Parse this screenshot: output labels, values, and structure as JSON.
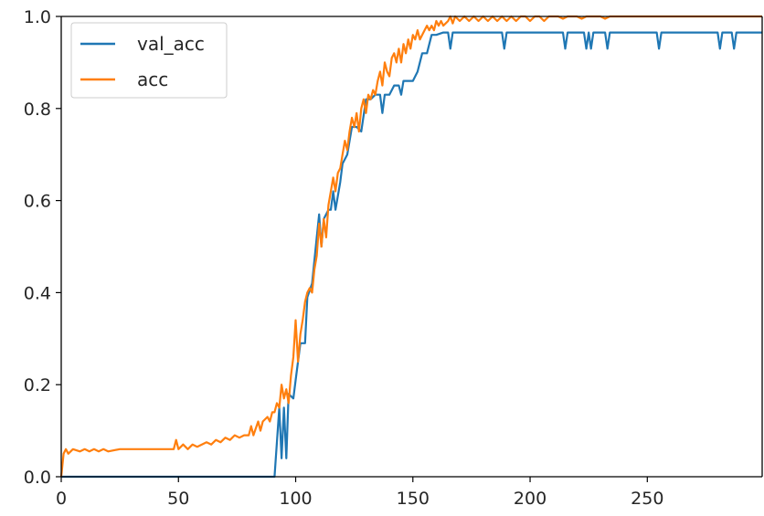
{
  "chart_data": {
    "type": "line",
    "title": "",
    "xlabel": "",
    "ylabel": "",
    "xlim": [
      0,
      299
    ],
    "ylim": [
      0,
      1.0
    ],
    "grid": false,
    "legend_position": "top-left",
    "x_ticks": [
      0,
      50,
      100,
      150,
      200,
      250
    ],
    "x_tick_labels": [
      "0",
      "50",
      "100",
      "150",
      "200",
      "250"
    ],
    "y_ticks": [
      0.0,
      0.2,
      0.4,
      0.6,
      0.8,
      1.0
    ],
    "y_tick_labels": [
      "0.0",
      "0.2",
      "0.4",
      "0.6",
      "0.8",
      "1.0"
    ],
    "series": [
      {
        "name": "val_acc",
        "color": "#1f77b4",
        "points": [
          [
            0,
            0.0
          ],
          [
            91,
            0.0
          ],
          [
            93,
            0.15
          ],
          [
            94,
            0.04
          ],
          [
            95,
            0.15
          ],
          [
            96,
            0.04
          ],
          [
            97,
            0.18
          ],
          [
            99,
            0.17
          ],
          [
            100,
            0.21
          ],
          [
            102,
            0.29
          ],
          [
            104,
            0.29
          ],
          [
            105,
            0.39
          ],
          [
            107,
            0.42
          ],
          [
            109,
            0.52
          ],
          [
            110,
            0.57
          ],
          [
            111,
            0.5
          ],
          [
            112,
            0.56
          ],
          [
            114,
            0.58
          ],
          [
            115,
            0.58
          ],
          [
            116,
            0.62
          ],
          [
            117,
            0.58
          ],
          [
            119,
            0.64
          ],
          [
            120,
            0.68
          ],
          [
            122,
            0.7
          ],
          [
            124,
            0.76
          ],
          [
            126,
            0.76
          ],
          [
            128,
            0.75
          ],
          [
            130,
            0.82
          ],
          [
            132,
            0.82
          ],
          [
            134,
            0.83
          ],
          [
            136,
            0.83
          ],
          [
            137,
            0.79
          ],
          [
            138,
            0.83
          ],
          [
            140,
            0.83
          ],
          [
            142,
            0.85
          ],
          [
            144,
            0.85
          ],
          [
            145,
            0.83
          ],
          [
            146,
            0.86
          ],
          [
            150,
            0.86
          ],
          [
            152,
            0.88
          ],
          [
            154,
            0.92
          ],
          [
            156,
            0.92
          ],
          [
            158,
            0.96
          ],
          [
            160,
            0.96
          ],
          [
            163,
            0.965
          ],
          [
            165,
            0.965
          ],
          [
            166,
            0.93
          ],
          [
            167,
            0.965
          ],
          [
            188,
            0.965
          ],
          [
            189,
            0.93
          ],
          [
            190,
            0.965
          ],
          [
            214,
            0.965
          ],
          [
            215,
            0.93
          ],
          [
            216,
            0.965
          ],
          [
            223,
            0.965
          ],
          [
            224,
            0.93
          ],
          [
            225,
            0.965
          ],
          [
            226,
            0.93
          ],
          [
            227,
            0.965
          ],
          [
            232,
            0.965
          ],
          [
            233,
            0.93
          ],
          [
            234,
            0.965
          ],
          [
            254,
            0.965
          ],
          [
            255,
            0.93
          ],
          [
            256,
            0.965
          ],
          [
            280,
            0.965
          ],
          [
            281,
            0.93
          ],
          [
            282,
            0.965
          ],
          [
            286,
            0.965
          ],
          [
            287,
            0.93
          ],
          [
            288,
            0.965
          ],
          [
            299,
            0.965
          ]
        ]
      },
      {
        "name": "acc",
        "color": "#ff7f0e",
        "points": [
          [
            0,
            0.0
          ],
          [
            1,
            0.05
          ],
          [
            2,
            0.06
          ],
          [
            3,
            0.05
          ],
          [
            4,
            0.055
          ],
          [
            5,
            0.06
          ],
          [
            8,
            0.055
          ],
          [
            10,
            0.06
          ],
          [
            12,
            0.055
          ],
          [
            14,
            0.06
          ],
          [
            16,
            0.055
          ],
          [
            18,
            0.06
          ],
          [
            20,
            0.055
          ],
          [
            25,
            0.06
          ],
          [
            30,
            0.06
          ],
          [
            35,
            0.06
          ],
          [
            40,
            0.06
          ],
          [
            45,
            0.06
          ],
          [
            48,
            0.06
          ],
          [
            49,
            0.08
          ],
          [
            50,
            0.06
          ],
          [
            52,
            0.07
          ],
          [
            54,
            0.06
          ],
          [
            56,
            0.07
          ],
          [
            58,
            0.065
          ],
          [
            60,
            0.07
          ],
          [
            62,
            0.075
          ],
          [
            64,
            0.07
          ],
          [
            66,
            0.08
          ],
          [
            68,
            0.075
          ],
          [
            70,
            0.085
          ],
          [
            72,
            0.08
          ],
          [
            74,
            0.09
          ],
          [
            76,
            0.085
          ],
          [
            78,
            0.09
          ],
          [
            80,
            0.09
          ],
          [
            81,
            0.11
          ],
          [
            82,
            0.09
          ],
          [
            84,
            0.12
          ],
          [
            85,
            0.1
          ],
          [
            86,
            0.12
          ],
          [
            88,
            0.13
          ],
          [
            89,
            0.12
          ],
          [
            90,
            0.14
          ],
          [
            91,
            0.14
          ],
          [
            92,
            0.16
          ],
          [
            93,
            0.15
          ],
          [
            94,
            0.2
          ],
          [
            95,
            0.17
          ],
          [
            96,
            0.19
          ],
          [
            97,
            0.16
          ],
          [
            98,
            0.22
          ],
          [
            99,
            0.26
          ],
          [
            100,
            0.34
          ],
          [
            101,
            0.25
          ],
          [
            102,
            0.31
          ],
          [
            103,
            0.34
          ],
          [
            104,
            0.38
          ],
          [
            105,
            0.4
          ],
          [
            106,
            0.41
          ],
          [
            107,
            0.4
          ],
          [
            108,
            0.45
          ],
          [
            109,
            0.48
          ],
          [
            110,
            0.55
          ],
          [
            111,
            0.5
          ],
          [
            112,
            0.56
          ],
          [
            113,
            0.52
          ],
          [
            114,
            0.59
          ],
          [
            115,
            0.62
          ],
          [
            116,
            0.65
          ],
          [
            117,
            0.62
          ],
          [
            118,
            0.66
          ],
          [
            119,
            0.67
          ],
          [
            120,
            0.7
          ],
          [
            121,
            0.73
          ],
          [
            122,
            0.71
          ],
          [
            123,
            0.75
          ],
          [
            124,
            0.78
          ],
          [
            125,
            0.76
          ],
          [
            126,
            0.79
          ],
          [
            127,
            0.75
          ],
          [
            128,
            0.8
          ],
          [
            129,
            0.82
          ],
          [
            130,
            0.79
          ],
          [
            131,
            0.83
          ],
          [
            132,
            0.82
          ],
          [
            133,
            0.84
          ],
          [
            134,
            0.83
          ],
          [
            135,
            0.86
          ],
          [
            136,
            0.88
          ],
          [
            137,
            0.85
          ],
          [
            138,
            0.9
          ],
          [
            139,
            0.88
          ],
          [
            140,
            0.87
          ],
          [
            141,
            0.91
          ],
          [
            142,
            0.92
          ],
          [
            143,
            0.9
          ],
          [
            144,
            0.93
          ],
          [
            145,
            0.9
          ],
          [
            146,
            0.94
          ],
          [
            147,
            0.92
          ],
          [
            148,
            0.95
          ],
          [
            149,
            0.93
          ],
          [
            150,
            0.96
          ],
          [
            151,
            0.95
          ],
          [
            152,
            0.97
          ],
          [
            153,
            0.95
          ],
          [
            154,
            0.96
          ],
          [
            155,
            0.97
          ],
          [
            156,
            0.98
          ],
          [
            157,
            0.97
          ],
          [
            158,
            0.98
          ],
          [
            159,
            0.97
          ],
          [
            160,
            0.99
          ],
          [
            161,
            0.98
          ],
          [
            162,
            0.99
          ],
          [
            163,
            0.98
          ],
          [
            164,
            0.985
          ],
          [
            165,
            0.99
          ],
          [
            166,
            1.0
          ],
          [
            167,
            0.985
          ],
          [
            168,
            1.0
          ],
          [
            170,
            0.99
          ],
          [
            172,
            1.0
          ],
          [
            174,
            0.99
          ],
          [
            176,
            1.0
          ],
          [
            178,
            0.99
          ],
          [
            180,
            1.0
          ],
          [
            182,
            0.99
          ],
          [
            184,
            1.0
          ],
          [
            186,
            0.99
          ],
          [
            188,
            1.0
          ],
          [
            190,
            0.99
          ],
          [
            192,
            1.0
          ],
          [
            194,
            0.99
          ],
          [
            196,
            1.0
          ],
          [
            198,
            1.0
          ],
          [
            200,
            0.99
          ],
          [
            202,
            1.0
          ],
          [
            204,
            1.0
          ],
          [
            206,
            0.99
          ],
          [
            208,
            1.0
          ],
          [
            212,
            1.0
          ],
          [
            214,
            0.995
          ],
          [
            216,
            1.0
          ],
          [
            220,
            1.0
          ],
          [
            222,
            0.995
          ],
          [
            224,
            1.0
          ],
          [
            230,
            1.0
          ],
          [
            232,
            0.995
          ],
          [
            234,
            1.0
          ],
          [
            240,
            1.0
          ],
          [
            250,
            1.0
          ],
          [
            260,
            1.0
          ],
          [
            270,
            1.0
          ],
          [
            280,
            1.0
          ],
          [
            290,
            1.0
          ],
          [
            299,
            1.0
          ]
        ]
      }
    ]
  }
}
